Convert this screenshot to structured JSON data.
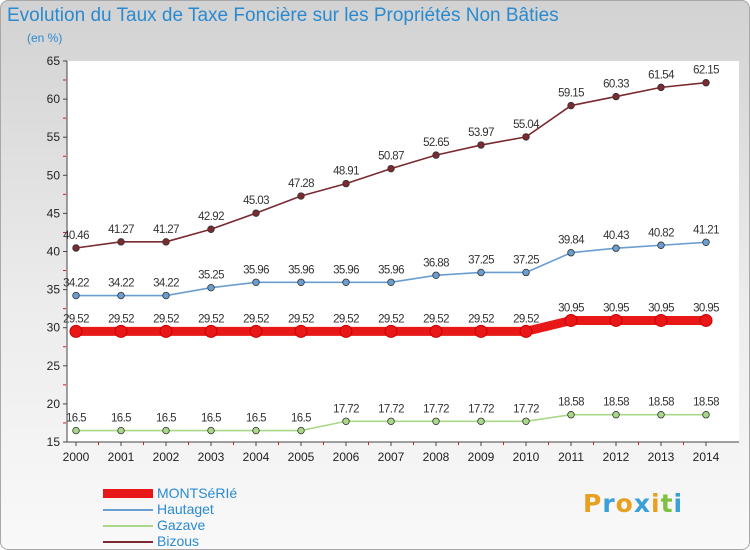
{
  "title": "Evolution du Taux de Taxe Foncière sur les Propriétés Non Bâties",
  "subtitle": "(en %)",
  "logo": {
    "letters": [
      "P",
      "r",
      "o",
      "x",
      "i",
      "t",
      "i"
    ],
    "colors": [
      "#e8a020",
      "#3aa0d8",
      "#e8a020",
      "#3aa0d8",
      "#e8a020",
      "#80c040",
      "#3aa0d8"
    ]
  },
  "chart_data": {
    "type": "line",
    "x": [
      "2000",
      "2001",
      "2002",
      "2003",
      "2004",
      "2005",
      "2006",
      "2007",
      "2008",
      "2009",
      "2010",
      "2011",
      "2012",
      "2013",
      "2014"
    ],
    "ylim": [
      15,
      65
    ],
    "yticks": [
      15,
      20,
      25,
      30,
      35,
      40,
      45,
      50,
      55,
      60,
      65
    ],
    "grid": false,
    "legend_position": "bottom-left",
    "series": [
      {
        "name": "MONTSéRIé",
        "color": "#e81818",
        "values": [
          29.52,
          29.52,
          29.52,
          29.52,
          29.52,
          29.52,
          29.52,
          29.52,
          29.52,
          29.52,
          29.52,
          30.95,
          30.95,
          30.95,
          30.95
        ],
        "labels": [
          "29.52",
          "29.52",
          "29.52",
          "29.52",
          "29.52",
          "29.52",
          "29.52",
          "29.52",
          "29.52",
          "29.52",
          "29.52",
          "30.95",
          "30.95",
          "30.95",
          "30.95"
        ]
      },
      {
        "name": "Hautaget",
        "color": "#6a9ed0",
        "values": [
          34.22,
          34.22,
          34.22,
          35.25,
          35.96,
          35.96,
          35.96,
          35.96,
          36.88,
          37.25,
          37.25,
          39.84,
          40.43,
          40.82,
          41.21
        ],
        "labels": [
          "34.22",
          "34.22",
          "34.22",
          "35.25",
          "35.96",
          "35.96",
          "35.96",
          "35.96",
          "36.88",
          "37.25",
          "37.25",
          "39.84",
          "40.43",
          "40.82",
          "41.21"
        ]
      },
      {
        "name": "Gazave",
        "color": "#a8d888",
        "values": [
          16.5,
          16.5,
          16.5,
          16.5,
          16.5,
          16.5,
          17.72,
          17.72,
          17.72,
          17.72,
          17.72,
          18.58,
          18.58,
          18.58,
          18.58
        ],
        "labels": [
          "16.5",
          "16.5",
          "16.5",
          "16.5",
          "16.5",
          "16.5",
          "17.72",
          "17.72",
          "17.72",
          "17.72",
          "17.72",
          "18.58",
          "18.58",
          "18.58",
          "18.58"
        ]
      },
      {
        "name": "Bizous",
        "color": "#7a2a30",
        "values": [
          40.46,
          41.27,
          41.27,
          42.92,
          45.03,
          47.28,
          48.91,
          50.87,
          52.65,
          53.97,
          55.04,
          59.15,
          60.33,
          61.54,
          62.15
        ],
        "labels": [
          "40.46",
          "41.27",
          "41.27",
          "42.92",
          "45.03",
          "47.28",
          "48.91",
          "50.87",
          "52.65",
          "53.97",
          "55.04",
          "59.15",
          "60.33",
          "61.54",
          "62.15"
        ]
      }
    ]
  }
}
